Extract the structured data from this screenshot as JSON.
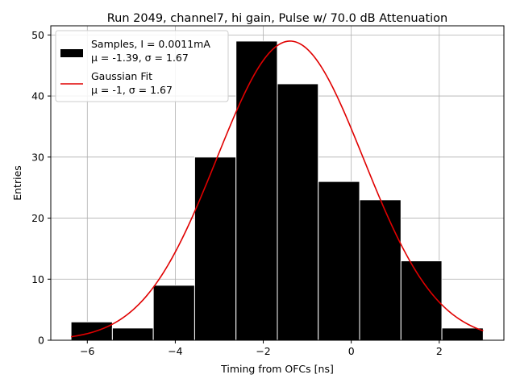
{
  "chart_data": {
    "type": "bar",
    "title": "Run 2049, channel7, hi gain, Pulse w/ 70.0 dB Attenuation",
    "xlabel": "Timing from OFCs [ns]",
    "ylabel": "Entries",
    "xlim": [
      -6.83,
      3.47
    ],
    "ylim": [
      0,
      51.5
    ],
    "grid": true,
    "legend_position": "top-left",
    "xticks": [
      -6,
      -4,
      -2,
      0,
      2
    ],
    "xtick_labels": [
      "−6",
      "−4",
      "−2",
      "0",
      "2"
    ],
    "yticks": [
      0,
      10,
      20,
      30,
      40,
      50
    ],
    "ytick_labels": [
      "0",
      "10",
      "20",
      "30",
      "40",
      "50"
    ],
    "series": [
      {
        "name": "Samples, I = 0.0011mA",
        "name_line2": "μ = -1.39, σ = 1.67",
        "kind": "histogram",
        "color": "#000000",
        "edgecolor": "#ffffff",
        "bin_edges": [
          -6.37,
          -5.43,
          -4.5,
          -3.56,
          -2.62,
          -1.68,
          -0.75,
          0.19,
          1.13,
          2.06,
          3.0
        ],
        "values": [
          3,
          2,
          9,
          30,
          49,
          42,
          26,
          23,
          13,
          2
        ]
      },
      {
        "name": "Gaussian Fit",
        "name_line2": "μ = -1, σ = 1.67",
        "kind": "gaussian",
        "color": "#e00000",
        "amplitude": 49,
        "mean": -1.39,
        "sigma": 1.67,
        "x_range": [
          -6.37,
          3.0
        ]
      }
    ]
  }
}
